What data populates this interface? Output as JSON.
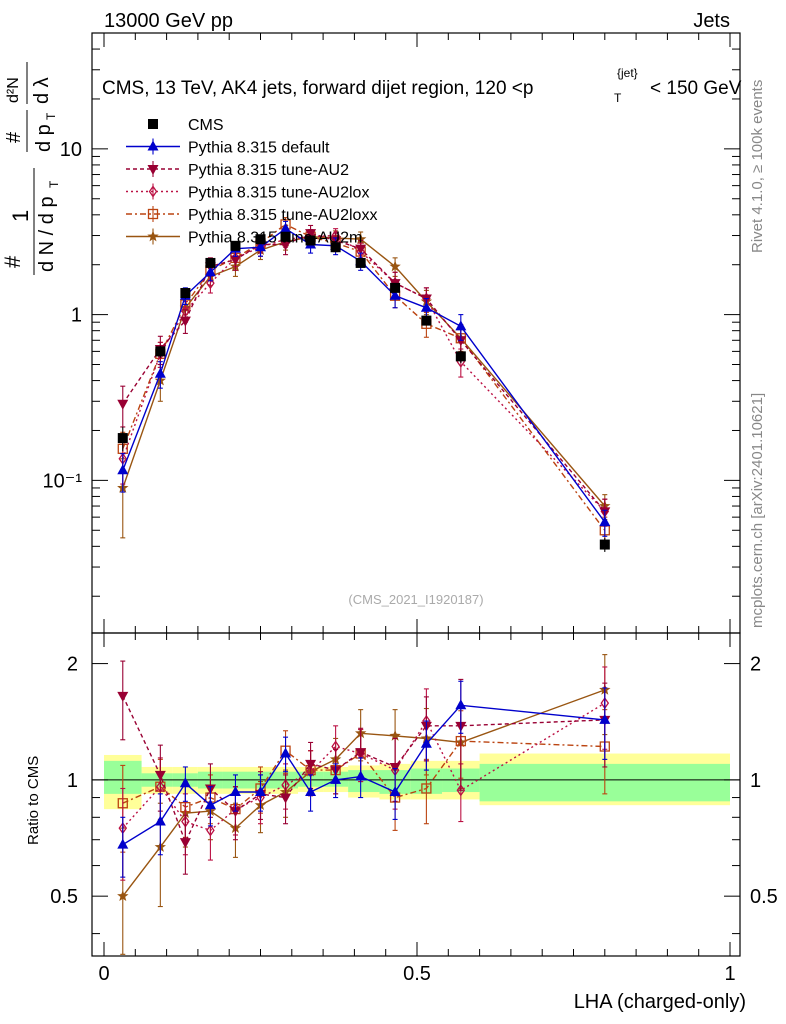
{
  "header": {
    "left": "13000 GeV pp",
    "right": "Jets"
  },
  "title": "CMS, 13 TeV, AK4 jets, forward dijet region, 120 <p",
  "title_sup": "{jet}",
  "title_sub": "T",
  "title_tail": "< 150 GeV",
  "ylabel_upper": {
    "num": "1",
    "den": "d N / d p",
    "den_sub": "T",
    "hash": "#",
    "frac2_num": "#",
    "frac2_den": "d p",
    "frac2_den_sub": "T",
    "frac3_num": "d²N",
    "frac3_den": "d λ"
  },
  "ylabel_lower": "Ratio to CMS",
  "xlabel": "LHA (charged-only)",
  "watermark": "(CMS_2021_I1920187)",
  "side_text_1": "Rivet 4.1.0, ≥ 100k events",
  "side_text_2": "mcplots.cern.ch [arXiv:2401.10621]",
  "colors": {
    "cms": "#000000",
    "default": "#0000cc",
    "au2": "#990033",
    "au2lox": "#bb1144",
    "au2loxx": "#bb4411",
    "au2m": "#995511",
    "band_inner": "#99ff99",
    "band_outer": "#ffff99"
  },
  "chart_data": {
    "type": "line",
    "title": "CMS, 13 TeV, AK4 jets, forward dijet region, 120 < p_T^{jet} < 150 GeV",
    "xlabel": "LHA (charged-only)",
    "ylabel": "1/(dN/dp_T) d²N/(dp_T dλ)",
    "yscale": "log",
    "xlim": [
      0,
      1
    ],
    "ylim": [
      0.012,
      50
    ],
    "x_ticks": [
      {
        "v": 0,
        "label": "0"
      },
      {
        "v": 0.5,
        "label": "0.5"
      },
      {
        "v": 1,
        "label": "1"
      }
    ],
    "y_ticks": [
      {
        "v": 0.1,
        "label": "10⁻¹"
      },
      {
        "v": 1,
        "label": "1"
      },
      {
        "v": 10,
        "label": "10"
      }
    ],
    "x": [
      0.03,
      0.09,
      0.13,
      0.17,
      0.21,
      0.25,
      0.29,
      0.33,
      0.37,
      0.41,
      0.465,
      0.515,
      0.57,
      0.8
    ],
    "bin_edges": [
      0,
      0.06,
      0.11,
      0.15,
      0.19,
      0.23,
      0.27,
      0.31,
      0.35,
      0.39,
      0.44,
      0.49,
      0.54,
      0.6,
      1.0
    ],
    "series": [
      {
        "key": "cms",
        "name": "CMS",
        "marker": "square",
        "dash": "",
        "values": [
          0.18,
          0.6,
          1.35,
          2.05,
          2.6,
          2.85,
          2.95,
          2.8,
          2.55,
          2.05,
          1.45,
          0.92,
          0.56,
          0.041
        ],
        "errors": [
          0.03,
          0.05,
          0.1,
          0.1,
          0.1,
          0.1,
          0.1,
          0.1,
          0.1,
          0.08,
          0.08,
          0.06,
          0.05,
          0.004
        ]
      },
      {
        "key": "default",
        "name": "Pythia 8.315 default",
        "marker": "triangle-up",
        "dash": "",
        "values": [
          0.115,
          0.44,
          1.3,
          1.8,
          2.5,
          2.55,
          3.3,
          2.65,
          2.6,
          2.1,
          1.3,
          1.1,
          0.85,
          0.056
        ],
        "errors": [
          0.03,
          0.08,
          0.15,
          0.2,
          0.25,
          0.3,
          0.35,
          0.3,
          0.3,
          0.25,
          0.2,
          0.15,
          0.15,
          0.01
        ]
      },
      {
        "key": "au2",
        "name": "Pythia 8.315 tune-AU2",
        "marker": "triangle-down",
        "dash": "4,3",
        "values": [
          0.29,
          0.62,
          0.92,
          1.95,
          2.15,
          2.65,
          2.65,
          3.1,
          2.8,
          2.5,
          1.55,
          1.25,
          0.7,
          0.065
        ],
        "errors": [
          0.08,
          0.12,
          0.15,
          0.25,
          0.3,
          0.3,
          0.35,
          0.35,
          0.3,
          0.3,
          0.25,
          0.2,
          0.15,
          0.012
        ]
      },
      {
        "key": "au2lox",
        "name": "Pythia 8.315 tune-AU2lox",
        "marker": "diamond",
        "dash": "2,3",
        "values": [
          0.135,
          0.58,
          1.05,
          1.55,
          2.2,
          2.55,
          2.85,
          2.95,
          3.0,
          2.4,
          1.55,
          1.25,
          0.52,
          0.065
        ],
        "errors": [
          0.04,
          0.1,
          0.15,
          0.2,
          0.25,
          0.3,
          0.3,
          0.3,
          0.3,
          0.3,
          0.25,
          0.2,
          0.1,
          0.012
        ]
      },
      {
        "key": "au2loxx",
        "name": "Pythia 8.315 tune-AU2loxx",
        "marker": "square-open",
        "dash": "6,3,2,3",
        "values": [
          0.155,
          0.58,
          1.15,
          1.85,
          2.2,
          2.7,
          3.5,
          2.95,
          2.7,
          2.4,
          1.3,
          0.88,
          0.72,
          0.05
        ],
        "errors": [
          0.04,
          0.1,
          0.15,
          0.2,
          0.25,
          0.3,
          0.35,
          0.3,
          0.3,
          0.3,
          0.2,
          0.15,
          0.12,
          0.01
        ]
      },
      {
        "key": "au2m",
        "name": "Pythia 8.315 tune-AU2m",
        "marker": "star",
        "dash": "",
        "values": [
          0.09,
          0.4,
          1.1,
          1.7,
          1.95,
          2.45,
          2.75,
          2.95,
          2.9,
          2.85,
          1.95,
          1.2,
          0.72,
          0.07
        ],
        "errors": [
          0.045,
          0.1,
          0.15,
          0.2,
          0.25,
          0.3,
          0.3,
          0.3,
          0.3,
          0.3,
          0.25,
          0.2,
          0.15,
          0.012
        ]
      }
    ],
    "ratio": {
      "ylim": [
        0.35,
        2.4
      ],
      "yscale": "log",
      "y_ticks": [
        {
          "v": 0.5,
          "label": "0.5"
        },
        {
          "v": 1,
          "label": "1"
        },
        {
          "v": 2,
          "label": "2"
        }
      ],
      "band_inner": [
        [
          0.92,
          1.12
        ],
        [
          0.96,
          1.04
        ],
        [
          0.96,
          1.04
        ],
        [
          0.95,
          1.05
        ],
        [
          0.95,
          1.05
        ],
        [
          0.95,
          1.05
        ],
        [
          0.95,
          1.05
        ],
        [
          0.96,
          1.05
        ],
        [
          0.96,
          1.05
        ],
        [
          0.93,
          1.06
        ],
        [
          0.92,
          1.06
        ],
        [
          0.92,
          1.07
        ],
        [
          0.93,
          1.07
        ],
        [
          0.88,
          1.1
        ]
      ],
      "band_outer": [
        [
          0.84,
          1.16
        ],
        [
          0.92,
          1.08
        ],
        [
          0.92,
          1.08
        ],
        [
          0.92,
          1.08
        ],
        [
          0.92,
          1.08
        ],
        [
          0.92,
          1.08
        ],
        [
          0.92,
          1.08
        ],
        [
          0.93,
          1.08
        ],
        [
          0.93,
          1.08
        ],
        [
          0.9,
          1.09
        ],
        [
          0.89,
          1.1
        ],
        [
          0.89,
          1.12
        ],
        [
          0.89,
          1.12
        ],
        [
          0.86,
          1.17
        ]
      ],
      "series": [
        {
          "key": "default",
          "values": [
            0.68,
            0.78,
            0.98,
            0.86,
            0.93,
            0.93,
            1.17,
            0.93,
            1.0,
            1.02,
            0.93,
            1.24,
            1.56,
            1.43
          ],
          "errors": [
            0.12,
            0.14,
            0.1,
            0.1,
            0.1,
            0.1,
            0.12,
            0.1,
            0.1,
            0.12,
            0.14,
            0.18,
            0.24,
            0.3
          ]
        },
        {
          "key": "au2",
          "values": [
            1.65,
            1.03,
            0.69,
            0.95,
            0.83,
            0.92,
            0.9,
            1.1,
            1.06,
            1.18,
            1.08,
            1.38,
            1.38,
            1.43
          ],
          "errors": [
            0.38,
            0.2,
            0.12,
            0.15,
            0.13,
            0.13,
            0.13,
            0.15,
            0.14,
            0.18,
            0.2,
            0.26,
            0.44,
            0.35
          ]
        },
        {
          "key": "au2lox",
          "values": [
            0.75,
            0.96,
            0.78,
            0.74,
            0.84,
            0.9,
            0.97,
            1.05,
            1.22,
            1.17,
            1.06,
            1.42,
            0.94,
            1.58
          ],
          "errors": [
            0.2,
            0.18,
            0.14,
            0.12,
            0.12,
            0.13,
            0.13,
            0.14,
            0.16,
            0.18,
            0.22,
            0.3,
            0.16,
            0.38
          ]
        },
        {
          "key": "au2loxx",
          "values": [
            0.87,
            0.96,
            0.85,
            0.9,
            0.84,
            0.95,
            1.19,
            1.06,
            1.06,
            1.17,
            0.9,
            0.95,
            1.26,
            1.22
          ],
          "errors": [
            0.22,
            0.17,
            0.14,
            0.13,
            0.12,
            0.13,
            0.15,
            0.13,
            0.14,
            0.18,
            0.16,
            0.18,
            0.25,
            0.3
          ]
        },
        {
          "key": "au2m",
          "values": [
            0.5,
            0.67,
            0.82,
            0.83,
            0.75,
            0.86,
            0.93,
            1.05,
            1.13,
            1.32,
            1.3,
            1.28,
            1.25,
            1.71
          ],
          "errors": [
            0.25,
            0.2,
            0.15,
            0.13,
            0.12,
            0.13,
            0.13,
            0.14,
            0.15,
            0.2,
            0.22,
            0.25,
            0.3,
            0.4
          ]
        }
      ]
    }
  }
}
